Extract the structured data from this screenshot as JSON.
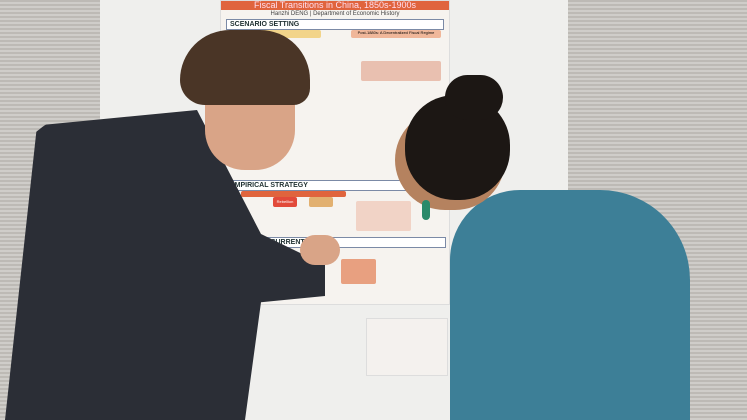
{
  "poster": {
    "title": "Fiscal Transitions in China, 1850s-1900s",
    "author": "Hanzhi DENG | Department of Economic History",
    "sections": [
      "SCENARIO SETTING",
      "EMPIRICAL STRATEGY",
      "ENSION OF CURRENT S"
    ],
    "subheads": [
      "Post-1880s: A Decentralized Fiscal Regime",
      "Rebellion"
    ]
  },
  "colors": {
    "poster_accent": "#e0643d",
    "sweater": "#3d7f97",
    "jacket": "#2b2e36"
  }
}
